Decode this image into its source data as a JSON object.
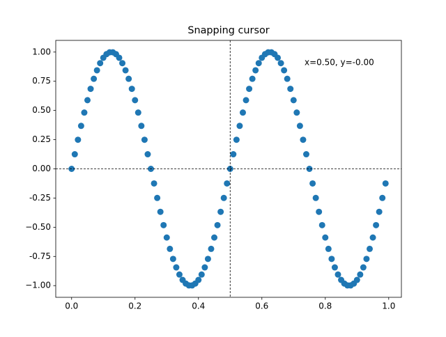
{
  "chart_data": {
    "type": "scatter",
    "title": "Snapping cursor",
    "color": "#1f77b4",
    "x": [
      0,
      0.01,
      0.02,
      0.03,
      0.04,
      0.05,
      0.06,
      0.07,
      0.08,
      0.09,
      0.1,
      0.11,
      0.12,
      0.13,
      0.14,
      0.15,
      0.16,
      0.17,
      0.18,
      0.19,
      0.2,
      0.21,
      0.22,
      0.23,
      0.24,
      0.25,
      0.26,
      0.27,
      0.28,
      0.29,
      0.3,
      0.31,
      0.32,
      0.33,
      0.34,
      0.35,
      0.36,
      0.37,
      0.38,
      0.39,
      0.4,
      0.41,
      0.42,
      0.43,
      0.44,
      0.45,
      0.46,
      0.47,
      0.48,
      0.49,
      0.5,
      0.51,
      0.52,
      0.53,
      0.54,
      0.55,
      0.56,
      0.57,
      0.58,
      0.59,
      0.6,
      0.61,
      0.62,
      0.63,
      0.64,
      0.65,
      0.66,
      0.67,
      0.68,
      0.69,
      0.7,
      0.71,
      0.72,
      0.73,
      0.74,
      0.75,
      0.76,
      0.77,
      0.78,
      0.79,
      0.8,
      0.81,
      0.82,
      0.83,
      0.84,
      0.85,
      0.86,
      0.87,
      0.88,
      0.89,
      0.9,
      0.91,
      0.92,
      0.93,
      0.94,
      0.95,
      0.96,
      0.97,
      0.98,
      0.99
    ],
    "values": [
      0,
      0.125,
      0.249,
      0.368,
      0.482,
      0.588,
      0.685,
      0.771,
      0.844,
      0.905,
      0.951,
      0.982,
      0.998,
      0.998,
      0.982,
      0.951,
      0.905,
      0.844,
      0.771,
      0.685,
      0.588,
      0.482,
      0.368,
      0.249,
      0.125,
      0,
      -0.125,
      -0.249,
      -0.368,
      -0.482,
      -0.588,
      -0.685,
      -0.771,
      -0.844,
      -0.905,
      -0.951,
      -0.982,
      -0.998,
      -0.998,
      -0.982,
      -0.951,
      -0.905,
      -0.844,
      -0.771,
      -0.685,
      -0.588,
      -0.482,
      -0.368,
      -0.249,
      -0.125,
      0,
      0.125,
      0.249,
      0.368,
      0.482,
      0.588,
      0.685,
      0.771,
      0.844,
      0.905,
      0.951,
      0.982,
      0.998,
      0.998,
      0.982,
      0.951,
      0.905,
      0.844,
      0.771,
      0.685,
      0.588,
      0.482,
      0.368,
      0.249,
      0.125,
      0,
      -0.125,
      -0.249,
      -0.368,
      -0.482,
      -0.588,
      -0.685,
      -0.771,
      -0.844,
      -0.905,
      -0.951,
      -0.982,
      -0.998,
      -0.998,
      -0.982,
      -0.951,
      -0.905,
      -0.844,
      -0.771,
      -0.685,
      -0.588,
      -0.482,
      -0.368,
      -0.249,
      -0.125
    ],
    "xlim": [
      -0.05,
      1.04
    ],
    "ylim": [
      -1.1,
      1.1
    ],
    "xticks": [
      {
        "value": 0,
        "label": "0.0"
      },
      0.2,
      0.4,
      0.6,
      0.8,
      {
        "value": 1,
        "label": "1.0"
      }
    ],
    "yticks": [
      {
        "value": -1,
        "label": "−1.00"
      },
      -0.75,
      {
        "value": -0.5,
        "label": "−0.50"
      },
      -0.25,
      {
        "value": 0,
        "label": "0.00"
      },
      0.25,
      {
        "value": 0.5,
        "label": "0.50"
      },
      0.75,
      {
        "value": 1,
        "label": "1.00"
      }
    ],
    "cursor": {
      "x": 0.5,
      "y": 0
    },
    "annotation": "x=0.50, y=-0.00"
  }
}
